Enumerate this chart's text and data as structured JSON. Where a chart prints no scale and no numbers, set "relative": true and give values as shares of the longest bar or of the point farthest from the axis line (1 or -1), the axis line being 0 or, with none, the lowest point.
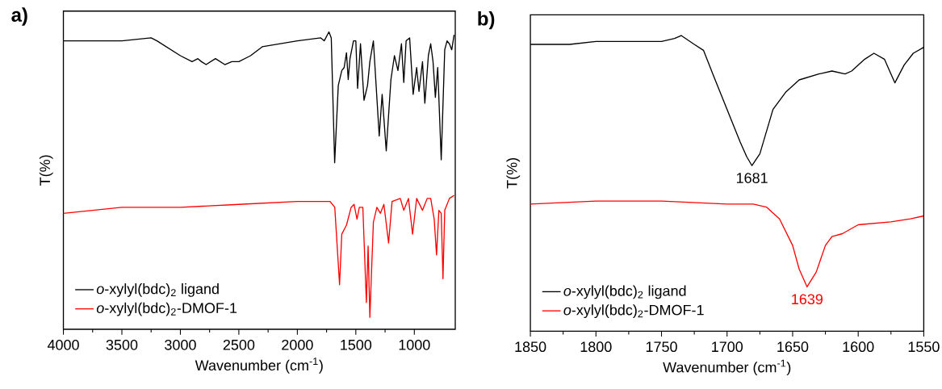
{
  "chart_data": [
    {
      "type": "line",
      "title": "a)",
      "xlabel": "Wavenumber (cm$^{-1}$)",
      "ylabel": "T(%)",
      "relative": true,
      "legend": "bottom left",
      "marker": "none",
      "line_style": "solid",
      "xlim": [
        4000,
        650
      ],
      "xticks": [
        4000,
        3500,
        3000,
        2500,
        2000,
        1500,
        1000
      ],
      "series": [
        {
          "name": "*o*-xylyl(bdc)$_{2}$ ligand",
          "color": "#000000",
          "x": [
            4000,
            3500,
            3250,
            3200,
            3000,
            2900,
            2850,
            2820,
            2780,
            2700,
            2620,
            2560,
            2500,
            2400,
            2300,
            2000,
            1800,
            1770,
            1730,
            1710,
            1681,
            1650,
            1620,
            1600,
            1580,
            1565,
            1550,
            1520,
            1500,
            1485,
            1460,
            1430,
            1400,
            1380,
            1350,
            1300,
            1275,
            1240,
            1200,
            1170,
            1140,
            1110,
            1090,
            1070,
            1040,
            1010,
            980,
            960,
            930,
            910,
            880,
            860,
            840,
            820,
            800,
            770,
            740,
            720,
            700,
            680,
            660
          ],
          "values": [
            0.97,
            0.97,
            0.98,
            0.97,
            0.92,
            0.9,
            0.91,
            0.9,
            0.89,
            0.91,
            0.89,
            0.9,
            0.9,
            0.92,
            0.95,
            0.97,
            0.98,
            0.97,
            1.0,
            0.98,
            0.56,
            0.82,
            0.87,
            0.88,
            0.93,
            0.84,
            0.91,
            0.97,
            0.97,
            0.81,
            0.96,
            0.77,
            0.82,
            0.9,
            0.97,
            0.65,
            0.79,
            0.6,
            0.84,
            0.92,
            0.87,
            0.96,
            0.83,
            0.97,
            0.98,
            0.79,
            0.88,
            0.8,
            0.9,
            0.76,
            0.92,
            0.96,
            0.9,
            0.78,
            0.88,
            0.57,
            0.94,
            0.97,
            0.96,
            0.94,
            0.99
          ]
        },
        {
          "name": "*o*-xylyl(bdc)$_{2}$-DMOF-1",
          "color": "#ff0000",
          "x": [
            4000,
            3500,
            3000,
            2500,
            2000,
            1720,
            1680,
            1639,
            1620,
            1580,
            1540,
            1515,
            1490,
            1470,
            1440,
            1410,
            1395,
            1380,
            1350,
            1320,
            1290,
            1260,
            1220,
            1190,
            1120,
            1090,
            1050,
            1015,
            980,
            930,
            890,
            860,
            830,
            810,
            790,
            770,
            755,
            740,
            700,
            660
          ],
          "values": [
            0.39,
            0.41,
            0.41,
            0.42,
            0.43,
            0.43,
            0.41,
            0.15,
            0.32,
            0.35,
            0.41,
            0.42,
            0.37,
            0.41,
            0.41,
            0.09,
            0.28,
            0.04,
            0.36,
            0.41,
            0.39,
            0.42,
            0.29,
            0.43,
            0.44,
            0.4,
            0.44,
            0.32,
            0.44,
            0.4,
            0.44,
            0.44,
            0.37,
            0.25,
            0.4,
            0.39,
            0.17,
            0.4,
            0.44,
            0.45
          ]
        }
      ]
    },
    {
      "type": "line",
      "title": "b)",
      "xlabel": "Wavenumber (cm$^{-1}$)",
      "ylabel": "T(%)",
      "relative": true,
      "legend": "bottom left",
      "marker": "none",
      "line_style": "solid",
      "xlim": [
        1850,
        1550
      ],
      "xticks": [
        1850,
        1800,
        1750,
        1700,
        1650,
        1600,
        1550
      ],
      "annotations": [
        {
          "text": "1681",
          "x": 1681,
          "y": 0.56
        },
        {
          "text": "1639",
          "x": 1639,
          "y": 0.15
        }
      ],
      "series": [
        {
          "name": "*o*-xylyl(bdc)$_{2}$ ligand",
          "color": "#000000",
          "x": [
            1850,
            1820,
            1800,
            1780,
            1750,
            1740,
            1735,
            1725,
            1718,
            1710,
            1700,
            1690,
            1685,
            1681,
            1675,
            1665,
            1655,
            1645,
            1630,
            1620,
            1610,
            1605,
            1595,
            1588,
            1580,
            1575,
            1572,
            1565,
            1558,
            1550
          ],
          "values": [
            0.97,
            0.97,
            0.98,
            0.98,
            0.98,
            0.99,
            1.0,
            0.97,
            0.95,
            0.86,
            0.75,
            0.64,
            0.59,
            0.56,
            0.6,
            0.75,
            0.81,
            0.85,
            0.87,
            0.88,
            0.87,
            0.88,
            0.92,
            0.94,
            0.92,
            0.87,
            0.84,
            0.9,
            0.94,
            0.96
          ]
        },
        {
          "name": "*o*-xylyl(bdc)$_{2}$-DMOF-1",
          "color": "#ff0000",
          "x": [
            1850,
            1800,
            1750,
            1700,
            1690,
            1680,
            1670,
            1660,
            1650,
            1645,
            1639,
            1632,
            1625,
            1620,
            1612,
            1600,
            1575,
            1560,
            1550
          ],
          "values": [
            0.43,
            0.44,
            0.44,
            0.43,
            0.43,
            0.43,
            0.42,
            0.38,
            0.29,
            0.21,
            0.15,
            0.2,
            0.29,
            0.32,
            0.33,
            0.36,
            0.37,
            0.38,
            0.39
          ]
        }
      ]
    }
  ]
}
